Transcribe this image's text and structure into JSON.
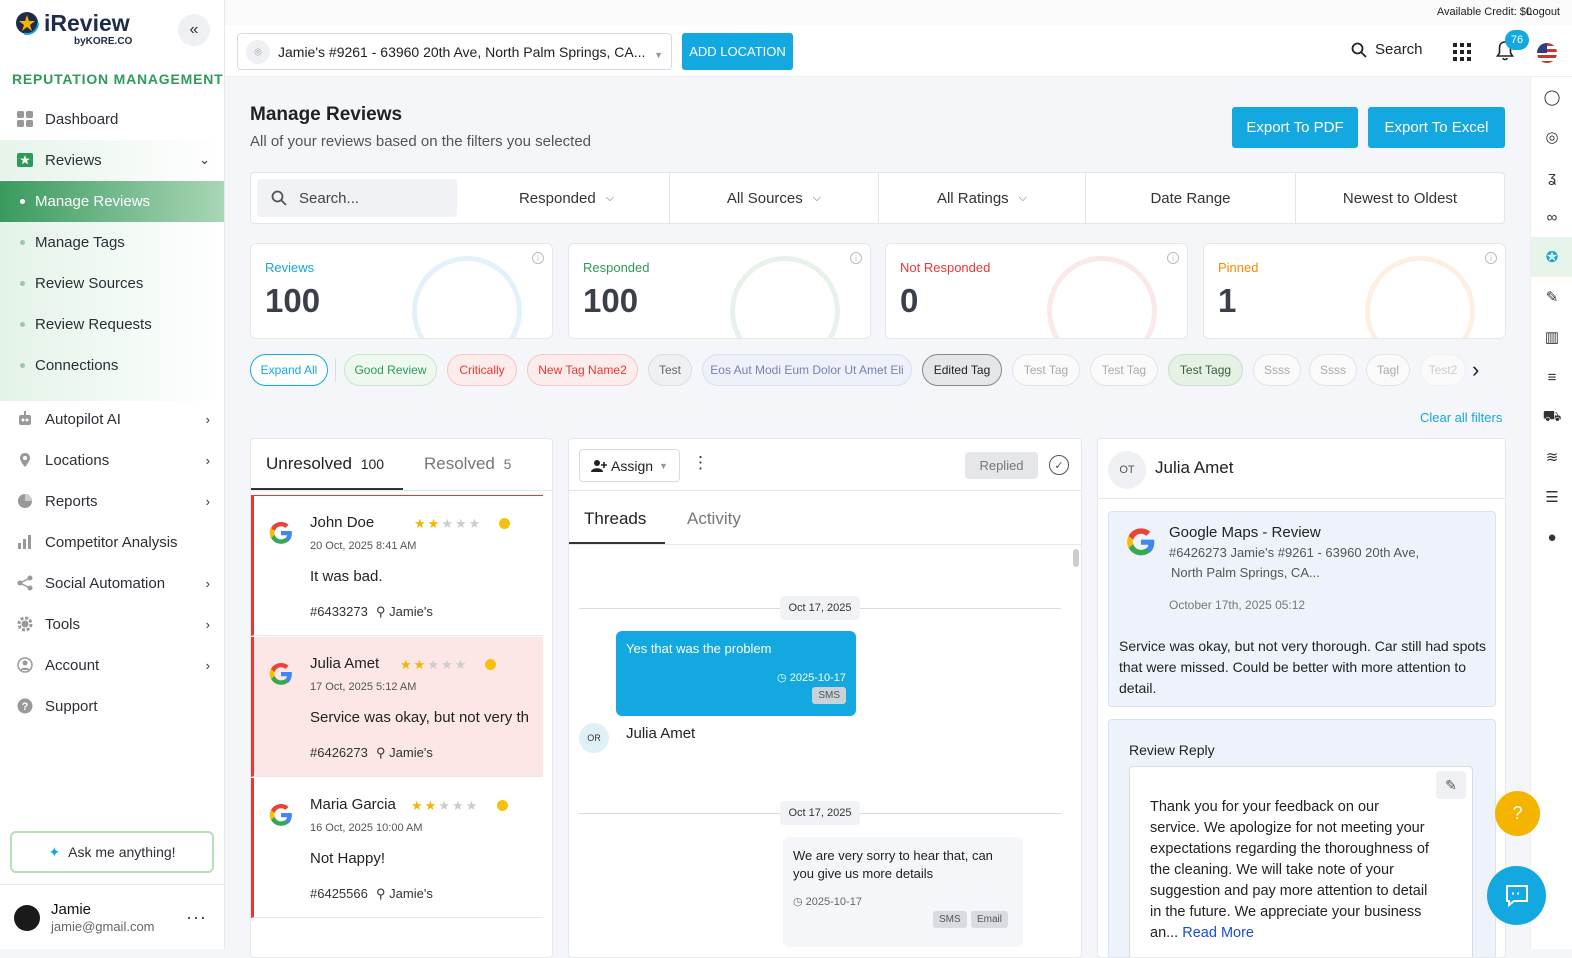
{
  "topstrip": {
    "credit": "Available Credit: $0",
    "logout": "Logout"
  },
  "topbar": {
    "location": "Jamie's #9261 - 63960 20th Ave, North Palm Springs, CA...",
    "add_location": "ADD LOCATION",
    "search": "Search",
    "notifications": "76"
  },
  "brand": {
    "name": "iReview",
    "sub": "byKORE.CO",
    "accent": "#13a8e0",
    "green": "#2e9b5b"
  },
  "sidebar": {
    "section": "REPUTATION MANAGEMENT",
    "items": [
      {
        "label": "Dashboard",
        "icon": "dashboard-icon"
      },
      {
        "label": "Reviews",
        "icon": "star-badge-icon"
      },
      {
        "label": "Autopilot AI",
        "icon": "robot-icon"
      },
      {
        "label": "Locations",
        "icon": "pin-icon"
      },
      {
        "label": "Reports",
        "icon": "pie-icon"
      },
      {
        "label": "Competitor Analysis",
        "icon": "bars-icon"
      },
      {
        "label": "Social Automation",
        "icon": "share-icon"
      },
      {
        "label": "Tools",
        "icon": "gear-icon"
      },
      {
        "label": "Account",
        "icon": "user-icon"
      },
      {
        "label": "Support",
        "icon": "question-icon"
      }
    ],
    "sub_items": [
      "Manage Reviews",
      "Manage Tags",
      "Review Sources",
      "Review Requests",
      "Connections"
    ],
    "ask": "Ask me anything!",
    "user": {
      "name": "Jamie",
      "email": "jamie@gmail.com"
    }
  },
  "page": {
    "title": "Manage Reviews",
    "subtitle": "All of your reviews based on the filters you selected",
    "export_pdf": "Export To PDF",
    "export_excel": "Export To Excel"
  },
  "filters": {
    "search_placeholder": "Search...",
    "responded": "Responded",
    "sources": "All Sources",
    "ratings": "All Ratings",
    "date_range": "Date Range",
    "sort": "Newest to Oldest"
  },
  "stats": [
    {
      "label": "Reviews",
      "value": "100",
      "color": "#13a8e0"
    },
    {
      "label": "Responded",
      "value": "100",
      "color": "#2e9b5b"
    },
    {
      "label": "Not Responded",
      "value": "0",
      "color": "#e53935"
    },
    {
      "label": "Pinned",
      "value": "1",
      "color": "#f08c00"
    }
  ],
  "tags": [
    "Expand All",
    "Good Review",
    "Critically",
    "New Tag Name2",
    "Test",
    "Eos Aut Modi Eum Dolor Ut Amet Eli",
    "Edited Tag",
    "Test Tag",
    "Test Tag",
    "Test Tagg",
    "Ssss",
    "Ssss",
    "Tagl",
    "Test2"
  ],
  "clear_filters": "Clear all filters",
  "list": {
    "tab_unresolved": "Unresolved",
    "unresolved_count": "100",
    "tab_resolved": "Resolved",
    "resolved_count": "5",
    "reviews": [
      {
        "name": "John Doe",
        "rating": 2,
        "date": "20 Oct, 2025 8:41 AM",
        "text": "It was bad.",
        "id": "#6433273",
        "location": "Jamie's"
      },
      {
        "name": "Julia Amet",
        "rating": 2,
        "date": "17 Oct, 2025 5:12 AM",
        "text": "Service was okay, but not very th",
        "id": "#6426273",
        "location": "Jamie's"
      },
      {
        "name": "Maria Garcia",
        "rating": 2,
        "date": "16 Oct, 2025 10:00 AM",
        "text": "Not Happy!",
        "id": "#6425566",
        "location": "Jamie's"
      }
    ]
  },
  "thread": {
    "assign": "Assign",
    "replied": "Replied",
    "tab_threads": "Threads",
    "tab_activity": "Activity",
    "date1": "Oct 17, 2025",
    "msg1": "Yes that was the problem",
    "msg1_time": "2025-10-17",
    "msg1_channel": "SMS",
    "sender_initials": "OR",
    "sender_name": "Julia Amet",
    "date2": "Oct 17, 2025",
    "msg2": "We are very sorry to hear that, can you give us more details",
    "msg2_time": "2025-10-17",
    "msg2_channel1": "SMS",
    "msg2_channel2": "Email"
  },
  "detail": {
    "initials": "OT",
    "name": "Julia Amet",
    "source": "Google Maps - Review",
    "location_line1": "#6426273 Jamie's #9261 - 63960 20th Ave,",
    "location_line2": "North Palm Springs, CA...",
    "date": "October 17th, 2025 05:12",
    "review": "Service was okay, but not very thorough. Car still had spots that were missed. Could be better with more attention to detail.",
    "reply_title": "Review Reply",
    "reply": "Thank you for your feedback on our service. We apologize for not meeting your expectations regarding the thoroughness of the cleaning. We will take note of your suggestion and pay more attention to detail in the future. We appreciate your business an...",
    "read_more": "Read More"
  }
}
